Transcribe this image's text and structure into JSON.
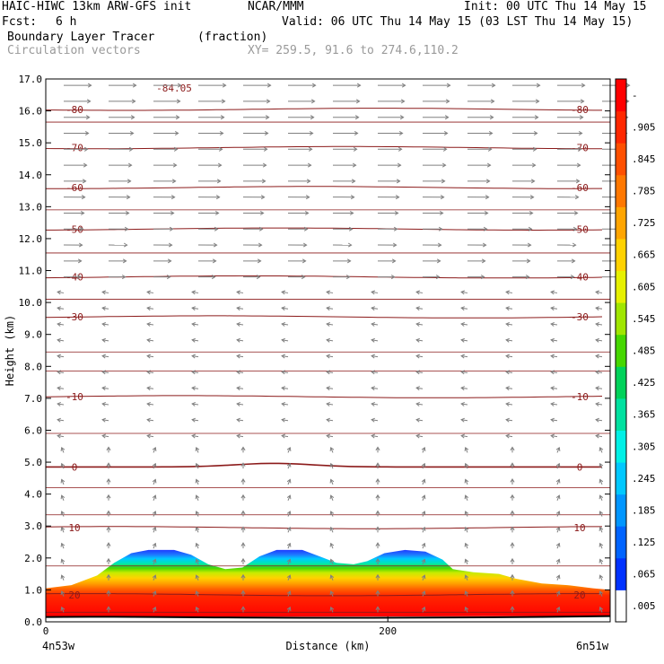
{
  "header": {
    "model": "HAIC-HIWC 13km ARW-GFS init",
    "org": "NCAR/MMM",
    "init": "Init: 00 UTC Thu 14 May 15",
    "fcst_label": "Fcst:",
    "fcst_value": "6 h",
    "valid": "Valid: 06 UTC Thu 14 May 15 (03 LST Thu 14 May 15)",
    "field": "Boundary Layer Tracer",
    "field_units": "(fraction)",
    "overlay": "Circulation vectors",
    "xy": "XY= 259.5, 91.6 to 274.6,110.2"
  },
  "colors": {
    "contour": "#8b1a1a",
    "vector": "#808080",
    "frame": "#000000"
  },
  "chart_data": {
    "type": "heatmap",
    "xlabel": "Distance (km)",
    "ylabel": "Height (km)",
    "xlim": [
      0,
      330
    ],
    "ylim": [
      0,
      17
    ],
    "x_ticks": [
      {
        "v": 0,
        "label": "0"
      },
      {
        "v": 200,
        "label": "200"
      }
    ],
    "x_end_labels": {
      "left": "4n53w",
      "right": "6n51w"
    },
    "y_ticks": [
      "0.0",
      "1.0",
      "2.0",
      "3.0",
      "4.0",
      "5.0",
      "6.0",
      "7.0",
      "8.0",
      "9.0",
      "10.0",
      "11.0",
      "12.0",
      "13.0",
      "14.0",
      "15.0",
      "16.0",
      "17.0"
    ],
    "colorbar": {
      "labels": [
        ".005",
        ".065",
        ".125",
        ".185",
        ".245",
        ".305",
        ".365",
        ".425",
        ".485",
        ".545",
        ".605",
        ".665",
        ".725",
        ".785",
        ".845",
        ".905",
        "-"
      ],
      "colors": [
        "#ffffff",
        "#0032ff",
        "#0064ff",
        "#0096ff",
        "#00c8ff",
        "#00f0e6",
        "#00e1a0",
        "#00d25a",
        "#46d700",
        "#a0e600",
        "#e6f000",
        "#ffd200",
        "#ffa500",
        "#ff7800",
        "#ff5000",
        "#ff2800",
        "#ff0000"
      ]
    },
    "tracer_top_km": [
      [
        0,
        1.05
      ],
      [
        15,
        1.15
      ],
      [
        30,
        1.45
      ],
      [
        40,
        1.85
      ],
      [
        50,
        2.15
      ],
      [
        60,
        2.25
      ],
      [
        75,
        2.25
      ],
      [
        85,
        2.1
      ],
      [
        95,
        1.8
      ],
      [
        105,
        1.65
      ],
      [
        115,
        1.7
      ],
      [
        125,
        2.05
      ],
      [
        135,
        2.25
      ],
      [
        150,
        2.25
      ],
      [
        160,
        2.05
      ],
      [
        170,
        1.85
      ],
      [
        180,
        1.8
      ],
      [
        188,
        1.9
      ],
      [
        198,
        2.15
      ],
      [
        210,
        2.25
      ],
      [
        222,
        2.2
      ],
      [
        232,
        1.95
      ],
      [
        238,
        1.65
      ],
      [
        250,
        1.55
      ],
      [
        265,
        1.5
      ],
      [
        275,
        1.35
      ],
      [
        290,
        1.2
      ],
      [
        305,
        1.15
      ],
      [
        320,
        1.05
      ],
      [
        330,
        1.0
      ]
    ],
    "tracer_bottom_km": 0.15,
    "temperature_contours": [
      {
        "label": "-80",
        "y_km": 16.05
      },
      {
        "label": "-70",
        "y_km": 14.85
      },
      {
        "label": "-60",
        "y_km": 13.6
      },
      {
        "label": "-50",
        "y_km": 12.3
      },
      {
        "label": "-40",
        "y_km": 10.8
      },
      {
        "label": "-30",
        "y_km": 9.55
      },
      {
        "label": "-10",
        "y_km": 7.05
      },
      {
        "label": "0",
        "y_km": 4.85
      },
      {
        "label": "10",
        "y_km": 2.95
      },
      {
        "label": "20",
        "y_km": 0.85
      }
    ],
    "annotations": [
      {
        "text": "-84.05",
        "x": 75,
        "y_km": 16.6
      }
    ]
  }
}
